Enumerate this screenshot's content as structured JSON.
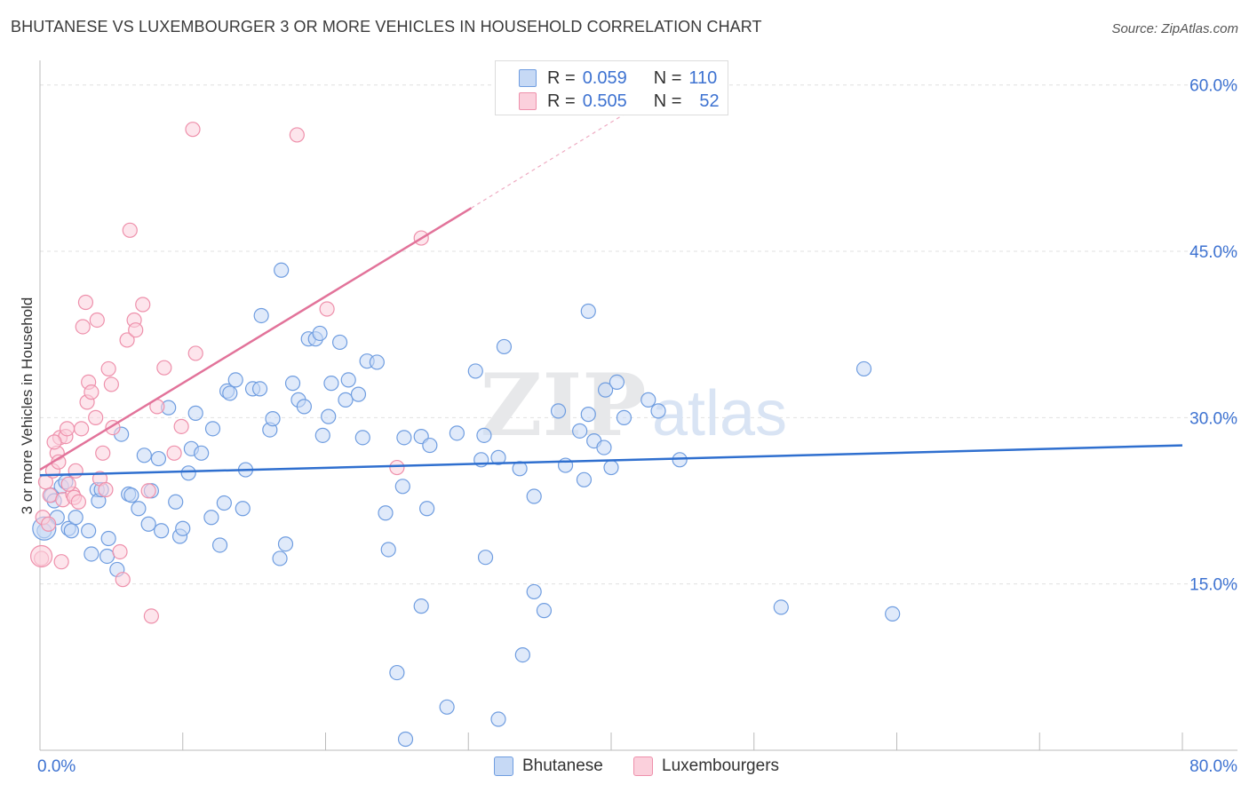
{
  "header": {
    "title": "BHUTANESE VS LUXEMBOURGER 3 OR MORE VEHICLES IN HOUSEHOLD CORRELATION CHART",
    "source": "Source: ZipAtlas.com"
  },
  "watermark": {
    "zip": "ZIP",
    "atlas": "atlas"
  },
  "legend": {
    "rows": [
      {
        "r_label": "R =",
        "r_value": "0.059",
        "n_label": "N =",
        "n_value": "110"
      },
      {
        "r_label": "R =",
        "r_value": "0.505",
        "n_label": "N =",
        "n_value": "52"
      }
    ]
  },
  "bottom_legend": {
    "series1": "Bhutanese",
    "series2": "Luxembourgers"
  },
  "chart_data": {
    "type": "scatter",
    "title": "BHUTANESE VS LUXEMBOURGER 3 OR MORE VEHICLES IN HOUSEHOLD CORRELATION CHART",
    "xlabel": "",
    "ylabel": "3 or more Vehicles in Household",
    "xlim": [
      0,
      80
    ],
    "ylim": [
      0,
      60
    ],
    "x_tick_labels": [
      "0.0%",
      "80.0%"
    ],
    "y_ticks": [
      15,
      30,
      45,
      60
    ],
    "y_tick_labels": [
      "15.0%",
      "30.0%",
      "45.0%",
      "60.0%"
    ],
    "colors": {
      "bhutanese_fill": "#c6d9f5",
      "bhutanese_stroke": "#6f9de0",
      "bhutanese_line": "#2f6fcf",
      "luxembourgers_fill": "#fbd0dc",
      "luxembourgers_stroke": "#ee90ab",
      "luxembourgers_line": "#e2739a",
      "axis_label": "#3d72d1",
      "grid": "#e0e0e0"
    },
    "series": [
      {
        "name": "Bhutanese",
        "r": 0.059,
        "n": 110,
        "trend": {
          "x": [
            0,
            80
          ],
          "y": [
            24.8,
            27.5
          ]
        },
        "points": [
          [
            0.3,
            19.8
          ],
          [
            0.8,
            23
          ],
          [
            1,
            22.5
          ],
          [
            1.2,
            21
          ],
          [
            1.5,
            23.8
          ],
          [
            1.8,
            24.2
          ],
          [
            2,
            20
          ],
          [
            2.2,
            19.8
          ],
          [
            2.5,
            21
          ],
          [
            3.4,
            19.8
          ],
          [
            3.6,
            17.7
          ],
          [
            4,
            23.5
          ],
          [
            4.1,
            22.5
          ],
          [
            4.3,
            23.5
          ],
          [
            4.7,
            17.5
          ],
          [
            4.8,
            19.1
          ],
          [
            5.4,
            16.3
          ],
          [
            5.7,
            28.5
          ],
          [
            6.2,
            23.1
          ],
          [
            6.4,
            23
          ],
          [
            6.9,
            21.8
          ],
          [
            7.3,
            26.6
          ],
          [
            7.6,
            20.4
          ],
          [
            7.8,
            23.4
          ],
          [
            8.3,
            26.3
          ],
          [
            8.5,
            19.8
          ],
          [
            9,
            30.9
          ],
          [
            9.5,
            22.4
          ],
          [
            9.8,
            19.3
          ],
          [
            10,
            20
          ],
          [
            10.4,
            25
          ],
          [
            10.6,
            27.2
          ],
          [
            10.9,
            30.4
          ],
          [
            11.3,
            26.8
          ],
          [
            12,
            21
          ],
          [
            12.1,
            29
          ],
          [
            12.6,
            18.5
          ],
          [
            12.9,
            22.3
          ],
          [
            13.1,
            32.4
          ],
          [
            13.3,
            32.2
          ],
          [
            13.7,
            33.4
          ],
          [
            14.2,
            21.8
          ],
          [
            14.4,
            25.3
          ],
          [
            14.9,
            32.6
          ],
          [
            15.4,
            32.6
          ],
          [
            15.5,
            39.2
          ],
          [
            16.1,
            28.9
          ],
          [
            16.3,
            29.9
          ],
          [
            16.8,
            17.3
          ],
          [
            16.9,
            43.3
          ],
          [
            17.2,
            18.6
          ],
          [
            17.7,
            33.1
          ],
          [
            18.1,
            31.6
          ],
          [
            18.5,
            31
          ],
          [
            18.8,
            37.1
          ],
          [
            19.3,
            37.1
          ],
          [
            19.6,
            37.6
          ],
          [
            19.8,
            28.4
          ],
          [
            20.2,
            30.1
          ],
          [
            20.4,
            33.1
          ],
          [
            21,
            36.8
          ],
          [
            21.4,
            31.6
          ],
          [
            21.6,
            33.4
          ],
          [
            22.3,
            32.1
          ],
          [
            22.6,
            28.2
          ],
          [
            22.9,
            35.1
          ],
          [
            23.6,
            35
          ],
          [
            24.2,
            21.4
          ],
          [
            24.4,
            18.1
          ],
          [
            25,
            7
          ],
          [
            25.4,
            23.8
          ],
          [
            25.5,
            28.2
          ],
          [
            25.6,
            1
          ],
          [
            26.7,
            28.3
          ],
          [
            26.7,
            13
          ],
          [
            27.1,
            21.8
          ],
          [
            27.3,
            27.5
          ],
          [
            28.5,
            3.9
          ],
          [
            29.2,
            28.6
          ],
          [
            30.5,
            34.2
          ],
          [
            30.9,
            26.2
          ],
          [
            31.2,
            17.4
          ],
          [
            31.1,
            28.4
          ],
          [
            32.1,
            2.8
          ],
          [
            32.1,
            26.4
          ],
          [
            32.5,
            36.4
          ],
          [
            33.6,
            25.4
          ],
          [
            33.8,
            8.6
          ],
          [
            34.6,
            22.9
          ],
          [
            34.6,
            14.3
          ],
          [
            35.3,
            12.6
          ],
          [
            36.3,
            30.6
          ],
          [
            36.8,
            25.7
          ],
          [
            37.8,
            28.8
          ],
          [
            38.1,
            24.4
          ],
          [
            38.4,
            30.3
          ],
          [
            38.4,
            39.6
          ],
          [
            38.8,
            27.9
          ],
          [
            39.5,
            27.3
          ],
          [
            39.6,
            32.5
          ],
          [
            40,
            25.5
          ],
          [
            40.4,
            33.2
          ],
          [
            40.9,
            30
          ],
          [
            42.6,
            31.6
          ],
          [
            43.3,
            30.6
          ],
          [
            44.8,
            26.2
          ],
          [
            51.9,
            12.9
          ],
          [
            57.7,
            34.4
          ],
          [
            59.7,
            12.3
          ]
        ]
      },
      {
        "name": "Luxembourgers",
        "r": 0.505,
        "n": 52,
        "trend": {
          "x": [
            0,
            30.2
          ],
          "y": [
            25.3,
            48.9
          ]
        },
        "trend_extension": {
          "x": [
            30.2,
            42.1
          ],
          "y": [
            48.9,
            58.3
          ]
        },
        "points": [
          [
            0.1,
            17.3
          ],
          [
            0.2,
            21
          ],
          [
            0.4,
            24.2
          ],
          [
            0.7,
            23
          ],
          [
            0.9,
            25.2
          ],
          [
            1.2,
            26.8
          ],
          [
            1.3,
            26
          ],
          [
            1.4,
            28.2
          ],
          [
            1.5,
            17
          ],
          [
            1.6,
            22.6
          ],
          [
            1.8,
            28.3
          ],
          [
            1.9,
            29
          ],
          [
            2.3,
            23.1
          ],
          [
            2.4,
            22.8
          ],
          [
            2.5,
            25.2
          ],
          [
            2.7,
            22.4
          ],
          [
            2.9,
            29
          ],
          [
            3,
            38.2
          ],
          [
            3.2,
            40.4
          ],
          [
            3.3,
            31.4
          ],
          [
            3.4,
            33.2
          ],
          [
            3.6,
            32.3
          ],
          [
            3.9,
            30
          ],
          [
            4,
            38.8
          ],
          [
            4.2,
            24.5
          ],
          [
            4.4,
            26.8
          ],
          [
            4.6,
            23.5
          ],
          [
            4.8,
            34.4
          ],
          [
            5,
            33
          ],
          [
            5.1,
            29.1
          ],
          [
            5.6,
            17.9
          ],
          [
            5.8,
            15.4
          ],
          [
            6.1,
            37
          ],
          [
            6.3,
            46.9
          ],
          [
            6.6,
            38.8
          ],
          [
            6.7,
            37.9
          ],
          [
            7.2,
            40.2
          ],
          [
            7.6,
            23.4
          ],
          [
            7.8,
            12.1
          ],
          [
            8.2,
            31
          ],
          [
            8.7,
            34.5
          ],
          [
            9.4,
            26.8
          ],
          [
            9.9,
            29.2
          ],
          [
            10.7,
            56
          ],
          [
            10.9,
            35.8
          ],
          [
            18,
            55.5
          ],
          [
            20.1,
            39.8
          ],
          [
            25,
            25.5
          ],
          [
            26.7,
            46.2
          ],
          [
            1,
            27.8
          ],
          [
            0.6,
            20.4
          ],
          [
            2,
            24
          ]
        ]
      }
    ]
  }
}
